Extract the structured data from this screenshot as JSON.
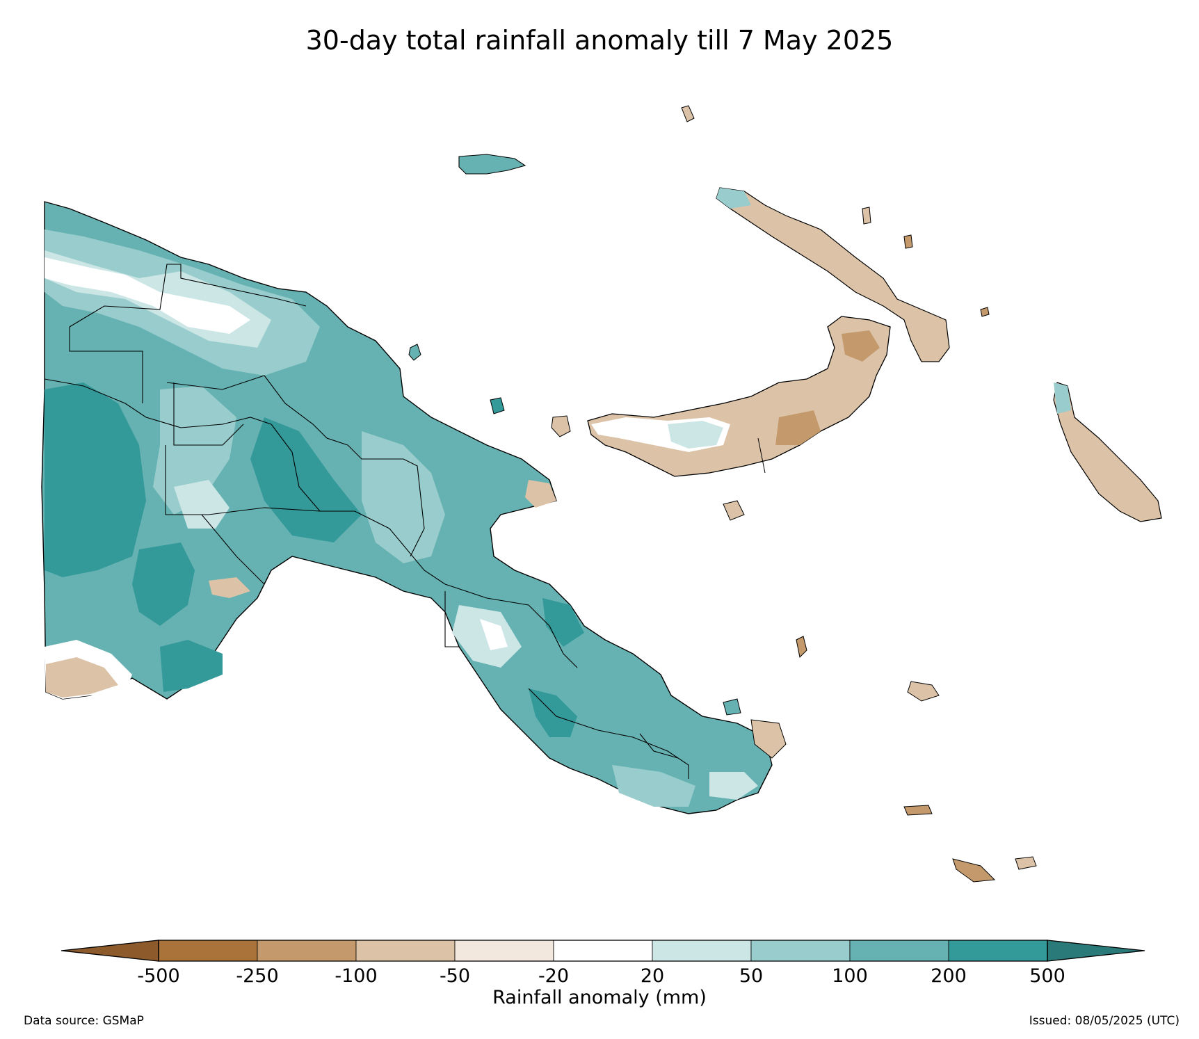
{
  "title": "30-day total rainfall anomaly till 7 May 2025",
  "colorbar": {
    "label": "Rainfall anomaly (mm)",
    "ticks": [
      "-500",
      "-250",
      "-100",
      "-50",
      "-20",
      "20",
      "50",
      "100",
      "200",
      "500"
    ],
    "colors": {
      "below_min": "#8c5a2b",
      "bins": [
        "#a9733a",
        "#c49a6c",
        "#dcc3a8",
        "#f2e8de",
        "#ffffff",
        "#cce6e6",
        "#99cccc",
        "#66b2b2",
        "#339999"
      ],
      "above_max": "#2a7a7a"
    }
  },
  "footer": {
    "data_source": "Data source: GSMaP",
    "issued": "Issued: 08/05/2025 (UTC)"
  }
}
